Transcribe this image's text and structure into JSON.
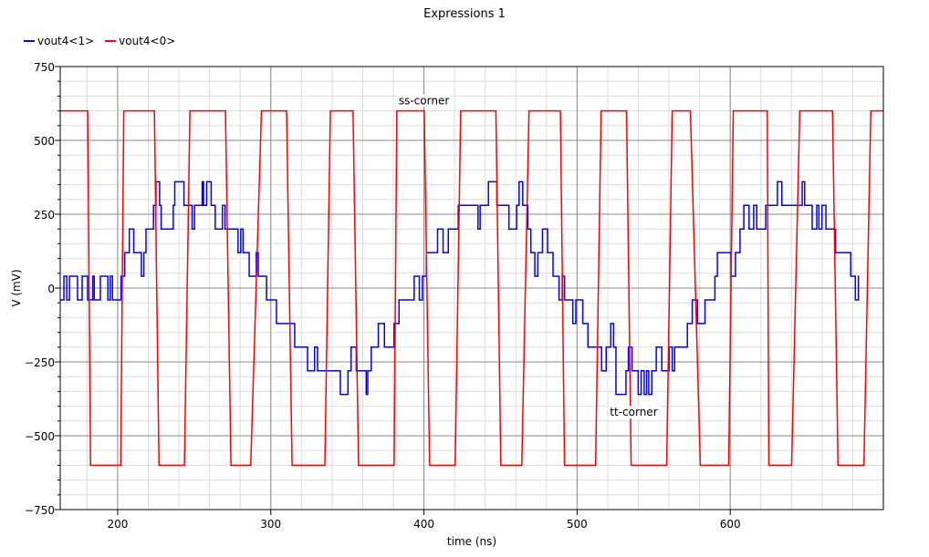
{
  "chart_data": {
    "type": "line",
    "title": "Expressions 1",
    "xlabel": "time (ns)",
    "ylabel": "V (mV)",
    "xlim": [
      162.5,
      700
    ],
    "ylim": [
      -750,
      750
    ],
    "xticks": [
      200,
      300,
      400,
      500,
      600
    ],
    "yticks": [
      750,
      500,
      250,
      0,
      -250,
      -500,
      -750
    ],
    "x_minor_step": 20,
    "y_minor_step": 50,
    "grid": true,
    "legend_position": "top-left",
    "annotations": [
      {
        "text": "ss-corner",
        "x": 400,
        "y": 635
      },
      {
        "text": "tt-corner",
        "x": 537,
        "y": -420
      }
    ],
    "series": [
      {
        "name": "vout4<1>",
        "color": "#0000ff",
        "style": "step",
        "x": [
          162.5,
          162.9,
          164.9,
          166.8,
          168.5,
          173.8,
          176.8,
          180.4,
          183.7,
          184.7,
          188.7,
          193.6,
          195.2,
          196.6,
          202.2,
          204.6,
          207.6,
          210.5,
          215.5,
          217.1,
          218.5,
          223.4,
          225.0,
          227.4,
          228.4,
          236.3,
          237.3,
          243.3,
          248.6,
          250.2,
          255.2,
          256.1,
          258.1,
          261.1,
          263.7,
          268.4,
          270.1,
          278.6,
          280.4,
          281.9,
          285.9,
          290.5,
          291.8,
          297.2,
          303.7,
          315.6,
          324.0,
          328.6,
          330.5,
          345.4,
          350.4,
          352.4,
          355.8,
          362.3,
          363.3,
          365.6,
          370.2,
          374.2,
          380.5,
          383.7,
          393.6,
          397.0,
          399.0,
          401.6,
          408.9,
          412.5,
          415.9,
          422.4,
          435.3,
          436.7,
          442.1,
          447.6,
          455.5,
          460.5,
          462.1,
          464.5,
          467.8,
          469.8,
          472.4,
          474.4,
          477.4,
          480.7,
          484.3,
          488.2,
          490.3,
          491.8,
          497.2,
          499.2,
          503.7,
          507.1,
          516.0,
          519.0,
          522.0,
          523.8,
          525.4,
          531.9,
          533.5,
          535.9,
          539.9,
          541.8,
          543.8,
          545.4,
          546.8,
          548.8,
          551.7,
          555.3,
          560.1,
          562.1,
          563.7,
          572.0,
          575.2,
          578.6,
          583.5,
          590.0,
          591.6,
          600.6,
          603.4,
          606.4,
          608.9,
          612.3,
          615.3,
          617.3,
          623.2,
          630.8,
          633.7,
          647.0,
          648.6,
          653.5,
          656.5,
          657.9,
          659.9,
          662.5,
          668.8,
          678.7,
          681.7,
          683.7,
          683.9
        ],
        "y": [
          -40,
          -40,
          40,
          -40,
          40,
          -40,
          40,
          -40,
          40,
          -40,
          40,
          -40,
          40,
          -40,
          40,
          120,
          200,
          120,
          40,
          120,
          200,
          280,
          360,
          280,
          200,
          280,
          360,
          280,
          200,
          280,
          360,
          280,
          360,
          280,
          200,
          280,
          200,
          120,
          200,
          120,
          40,
          120,
          40,
          -40,
          -120,
          -200,
          -280,
          -200,
          -280,
          -360,
          -280,
          -200,
          -280,
          -360,
          -280,
          -200,
          -120,
          -200,
          -120,
          -40,
          40,
          -40,
          40,
          120,
          200,
          120,
          200,
          280,
          200,
          280,
          360,
          280,
          200,
          280,
          360,
          280,
          200,
          120,
          40,
          120,
          200,
          120,
          40,
          -40,
          40,
          -40,
          -120,
          -40,
          -120,
          -200,
          -280,
          -200,
          -120,
          -200,
          -360,
          -280,
          -200,
          -280,
          -360,
          -280,
          -360,
          -280,
          -360,
          -280,
          -200,
          -280,
          -200,
          -280,
          -200,
          -120,
          -40,
          -120,
          -40,
          40,
          120,
          40,
          120,
          200,
          280,
          200,
          280,
          200,
          280,
          360,
          280,
          360,
          280,
          200,
          280,
          200,
          280,
          200,
          120,
          40,
          -40,
          40,
          40
        ]
      },
      {
        "name": "vout4<0>",
        "color": "#ff0000",
        "style": "linear",
        "x": [
          162.5,
          180.4,
          182.3,
          202.0,
          204.0,
          224.0,
          227.0,
          243.6,
          247.2,
          270.4,
          274.0,
          286.9,
          293.9,
          310.3,
          313.9,
          335.3,
          338.9,
          353.7,
          357.3,
          380.5,
          382.3,
          400.2,
          403.7,
          420.4,
          424.0,
          447.0,
          450.2,
          463.9,
          468.6,
          489.1,
          491.8,
          512.1,
          515.7,
          532.3,
          535.3,
          558.5,
          562.1,
          574.0,
          580.5,
          599.0,
          602.0,
          624.2,
          625.2,
          640.1,
          645.4,
          666.8,
          670.4,
          687.3,
          691.8,
          700
        ],
        "y": [
          600,
          600,
          -600,
          -600,
          600,
          600,
          -600,
          -600,
          600,
          600,
          -600,
          -600,
          600,
          600,
          -600,
          -600,
          600,
          600,
          -600,
          -600,
          600,
          600,
          -600,
          -600,
          600,
          600,
          -600,
          -600,
          600,
          600,
          -600,
          -600,
          600,
          600,
          -600,
          -600,
          600,
          600,
          -600,
          -600,
          600,
          600,
          -600,
          -600,
          600,
          600,
          -600,
          -600,
          600,
          600
        ]
      }
    ]
  }
}
